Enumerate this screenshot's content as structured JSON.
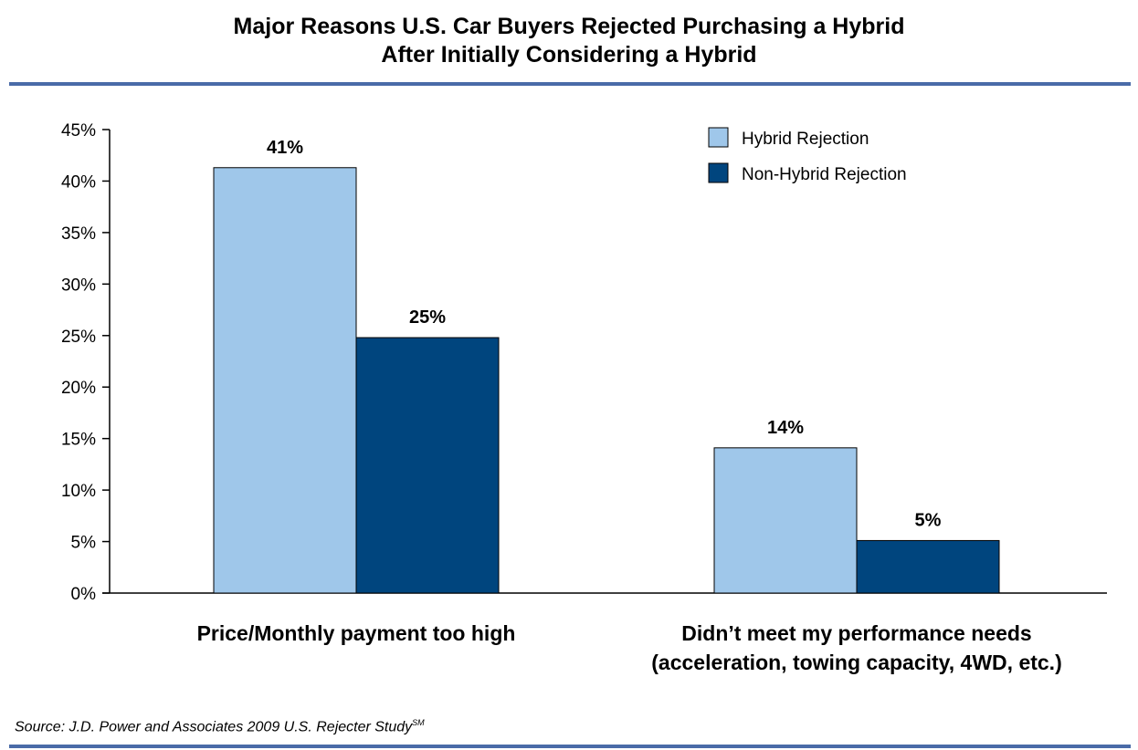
{
  "header": {
    "title_line1": "Major Reasons U.S. Car Buyers Rejected Purchasing a Hybrid",
    "title_line2": "After Initially Considering a Hybrid"
  },
  "footer": {
    "source": "Source: J.D. Power and Associates 2009 U.S. Rejecter Study",
    "source_sup": "SM"
  },
  "colors": {
    "hybrid": "#9fc7ea",
    "non_hybrid": "#00457e",
    "rule": "#4a6ba8"
  },
  "chart_data": {
    "type": "bar",
    "categories": [
      [
        "Price/Monthly payment too high"
      ],
      [
        "Didn’t meet my performance needs",
        "(acceleration, towing capacity, 4WD, etc.)"
      ]
    ],
    "series": [
      {
        "name": "Hybrid Rejection",
        "values": [
          41.3,
          14.1
        ],
        "labels": [
          "41%",
          "14%"
        ],
        "color": "#9fc7ea"
      },
      {
        "name": "Non-Hybrid Rejection",
        "values": [
          24.8,
          5.1
        ],
        "labels": [
          "25%",
          "5%"
        ],
        "color": "#00457e"
      }
    ],
    "ylim": [
      0,
      45
    ],
    "yticks": [
      0,
      5,
      10,
      15,
      20,
      25,
      30,
      35,
      40,
      45
    ],
    "ytick_labels": [
      "0%",
      "5%",
      "10%",
      "15%",
      "20%",
      "25%",
      "30%",
      "35%",
      "40%",
      "45%"
    ],
    "legend_position": "top-right",
    "grid": false
  }
}
